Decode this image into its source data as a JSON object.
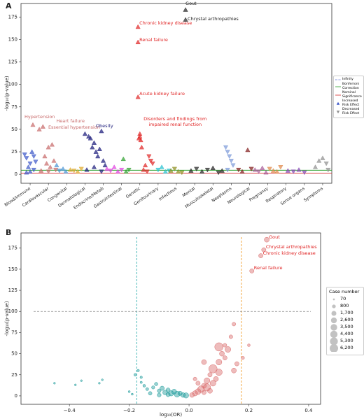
{
  "chart_data": [
    {
      "type": "phewas",
      "panel": "A",
      "y_label": "-log₁₀(p-value)",
      "xlim": [
        0,
        17
      ],
      "ylim": [
        -10,
        190
      ],
      "yticks": [
        0,
        25,
        50,
        75,
        100,
        125,
        150,
        175
      ],
      "categories": [
        "Blood/Immune",
        "Cardiovascular",
        "Congenital",
        "Dermatological",
        "Endocrine/Metab",
        "Gastrointestinal",
        "Genetic",
        "Genitourinary",
        "Infectious",
        "Mental",
        "Musculoskeletal",
        "Neoplasms",
        "Neurological",
        "Pregnancy",
        "Respiratory",
        "Sense organs",
        "Symptoms"
      ],
      "series": [
        {
          "color": "#3a56c8",
          "x": [
            0.2,
            0.3,
            0.4,
            0.5,
            0.6,
            0.7,
            0.8,
            0.5,
            0.3,
            0.7
          ],
          "values": [
            22,
            18,
            8,
            12,
            25,
            5,
            14,
            3,
            2,
            20
          ],
          "markers": [
            "v",
            "v",
            "^",
            "v",
            "^",
            "v",
            "v",
            "^",
            "^",
            "v"
          ]
        },
        {
          "color": "#c86a6a",
          "x": [
            0.65,
            1.0,
            1.2,
            1.5,
            1.7,
            1.3,
            1.4,
            1.6,
            1.8,
            1.1,
            1.5,
            1.9
          ],
          "values": [
            55,
            50,
            53,
            30,
            33,
            20,
            12,
            8,
            15,
            4,
            3,
            5
          ],
          "markers": [
            "^",
            "^",
            "^",
            "^",
            "^",
            "^",
            "^",
            "^",
            "^",
            "^",
            "v",
            "v"
          ]
        },
        {
          "color": "#4a94d4",
          "x": [
            1.95,
            2.1,
            2.3,
            2.45
          ],
          "values": [
            10,
            4,
            6,
            3
          ],
          "markers": [
            "^",
            "v",
            "^",
            "^"
          ]
        },
        {
          "color": "#e0a82a",
          "x": [
            2.7,
            2.9,
            3.1,
            3.3
          ],
          "values": [
            5,
            4,
            3,
            6
          ],
          "markers": [
            "^",
            "v",
            "^",
            "v"
          ]
        },
        {
          "color": "#1a1a7a",
          "x": [
            3.5,
            3.7,
            3.8,
            3.9,
            4.0,
            4.1,
            4.2,
            4.3,
            4.4,
            4.5,
            4.6,
            3.6,
            4.0,
            4.4
          ],
          "values": [
            45,
            42,
            40,
            30,
            35,
            25,
            20,
            28,
            48,
            15,
            10,
            5,
            8,
            3
          ],
          "markers": [
            "^",
            "^",
            "^",
            "^",
            "^",
            "^",
            "^",
            "^",
            "^",
            "^",
            "^",
            "^",
            "^",
            "v"
          ]
        },
        {
          "color": "#e040e0",
          "x": [
            4.7,
            4.9,
            5.1,
            5.3,
            5.5
          ],
          "values": [
            6,
            4,
            8,
            3,
            5
          ],
          "markers": [
            "^",
            "v",
            "^",
            "^",
            "v"
          ]
        },
        {
          "color": "#2ca02c",
          "x": [
            5.6,
            5.75,
            5.9
          ],
          "values": [
            17,
            3,
            5
          ],
          "markers": [
            "^",
            "^",
            "v"
          ]
        },
        {
          "color": "#e02424",
          "x": [
            6.4,
            6.4,
            6.4,
            6.5,
            6.45,
            6.55,
            6.5,
            6.6,
            6.8,
            7.0,
            7.1,
            7.2,
            6.7,
            6.9
          ],
          "values": [
            164,
            147,
            86,
            45,
            40,
            38,
            42,
            30,
            10,
            20,
            15,
            12,
            5,
            3
          ],
          "markers": [
            "^",
            "^",
            "^",
            "^",
            "^",
            "^",
            "^",
            "^",
            "^",
            "v",
            "v",
            "v",
            "^",
            "v"
          ]
        },
        {
          "color": "#22c0d0",
          "x": [
            7.5,
            7.7,
            7.9,
            8.1
          ],
          "values": [
            5,
            8,
            3,
            4
          ],
          "markers": [
            "v",
            "^",
            "^",
            "v"
          ]
        },
        {
          "color": "#8e8e1e",
          "x": [
            8.2,
            8.4,
            8.6,
            8.8
          ],
          "values": [
            4,
            6,
            3,
            2
          ],
          "markers": [
            "^",
            "v",
            "^",
            "v"
          ]
        },
        {
          "color": "#222222",
          "x": [
            9.0,
            9.0,
            9.3,
            9.6,
            9.9,
            10.2,
            10.5,
            10.8,
            11.0
          ],
          "values": [
            183,
            172,
            4,
            6,
            3,
            5,
            7,
            2,
            4
          ],
          "markers": [
            "^",
            "^",
            "^",
            "v",
            "^",
            "v",
            "^",
            "v",
            "^"
          ]
        },
        {
          "color": "#7a98d8",
          "x": [
            11.2,
            11.3,
            11.4,
            11.5,
            11.6,
            11.3
          ],
          "values": [
            30,
            25,
            20,
            15,
            10,
            5
          ],
          "markers": [
            "v",
            "v",
            "v",
            "v",
            "v",
            "v"
          ]
        },
        {
          "color": "#801818",
          "x": [
            11.9,
            12.1,
            12.4,
            12.6
          ],
          "values": [
            5,
            3,
            27,
            6
          ],
          "markers": [
            "v",
            "^",
            "^",
            "v"
          ]
        },
        {
          "color": "#a85c98",
          "x": [
            12.8,
            13.0,
            13.2,
            13.4
          ],
          "values": [
            5,
            3,
            7,
            2
          ],
          "markers": [
            "^",
            "v",
            "^",
            "^"
          ]
        },
        {
          "color": "#e08848",
          "x": [
            13.6,
            13.8,
            14.0,
            14.2
          ],
          "values": [
            6,
            4,
            3,
            8
          ],
          "markers": [
            "v",
            "^",
            "^",
            "v"
          ]
        },
        {
          "color": "#8444b4",
          "x": [
            14.6,
            14.9,
            15.2,
            15.5
          ],
          "values": [
            4,
            3,
            5,
            2
          ],
          "markers": [
            "^",
            "v",
            "^",
            "v"
          ]
        },
        {
          "color": "#8e8e8e",
          "x": [
            16.1,
            16.3,
            16.5,
            16.7,
            16.8
          ],
          "values": [
            8,
            15,
            18,
            12,
            5
          ],
          "markers": [
            "^",
            "^",
            "^",
            "v",
            "v"
          ]
        }
      ],
      "hlines": [
        {
          "value": 4.5,
          "color": "#2ca02c"
        },
        {
          "value": 1.3,
          "color": "#d62728"
        }
      ],
      "legend": [
        {
          "label": "Infinity",
          "color": "#4a5fd0",
          "style": "dashdot"
        },
        {
          "label": "Bonferroni Correction",
          "color": "#2ca02c",
          "style": "solid"
        },
        {
          "label": "Nominal Significance",
          "color": "#d62728",
          "style": "solid"
        },
        {
          "label": "Increased Risk Effect",
          "color": "#3a56c8",
          "marker": "^"
        },
        {
          "label": "Decreased Risk Effect",
          "color": "#8e8e8e",
          "marker": "v"
        }
      ],
      "annotations": [
        {
          "text": "Gout",
          "x": 9.0,
          "y": 183,
          "color": "#222222"
        },
        {
          "text": "Chrystal arthropathies",
          "x": 9.0,
          "y": 172,
          "color": "#222222"
        },
        {
          "text": "Chronic kidney disease",
          "x": 6.4,
          "y": 164,
          "color": "#e02424"
        },
        {
          "text": "Renal failure",
          "x": 6.4,
          "y": 147,
          "color": "#e02424"
        },
        {
          "text": "Acute kidney failure",
          "x": 6.4,
          "y": 86,
          "color": "#e02424"
        },
        {
          "text": "Disorders and findings from impaired renal function",
          "x": 6.5,
          "y": 45,
          "color": "#e02424"
        },
        {
          "text": "Hypertension",
          "x": 0.65,
          "y": 55,
          "color": "#c86a6a"
        },
        {
          "text": "Heart failure",
          "x": 1.2,
          "y": 53,
          "color": "#c86a6a"
        },
        {
          "text": "Essential hypertension",
          "x": 1.3,
          "y": 52,
          "color": "#c86a6a"
        },
        {
          "text": "Obesity",
          "x": 4.4,
          "y": 48,
          "color": "#1a1a7a"
        }
      ]
    },
    {
      "type": "volcano",
      "panel": "B",
      "x_label": "log₁₀(OR)",
      "y_label": "-log₁₀(p-value)",
      "xlim": [
        -0.562,
        0.44
      ],
      "ylim": [
        -10,
        193
      ],
      "xticks": [
        {
          "value": -0.4,
          "label": "−0.4"
        },
        {
          "value": -0.2,
          "label": "−0.2"
        },
        {
          "value": 0.0,
          "label": "0.0"
        },
        {
          "value": 0.2,
          "label": "0.2"
        },
        {
          "value": 0.4,
          "label": "0.4"
        }
      ],
      "yticks": [
        0,
        25,
        50,
        75,
        100,
        125,
        150,
        175
      ],
      "vlines": [
        {
          "value": -0.175,
          "color": "#3ab0b0"
        },
        {
          "value": 0.175,
          "color": "#f0a030"
        }
      ],
      "hlines": [
        {
          "value": 100,
          "color": "#888888"
        }
      ],
      "series": [
        {
          "color": "#1a9a9a",
          "x": [
            -0.45,
            -0.38,
            -0.36,
            -0.3,
            -0.29,
            -0.18,
            -0.17,
            -0.16,
            -0.15,
            -0.14,
            -0.12,
            -0.11,
            -0.1,
            -0.09,
            -0.08,
            -0.07,
            -0.06,
            -0.05,
            -0.04,
            -0.03,
            -0.02,
            -0.01,
            -0.13,
            -0.1,
            -0.07,
            -0.2,
            -0.19,
            -0.16
          ],
          "values": [
            15,
            13,
            18,
            15,
            19,
            25,
            30,
            22,
            12,
            8,
            10,
            14,
            6,
            9,
            4,
            7,
            3,
            5,
            2,
            3,
            1,
            0.5,
            3,
            1,
            1.5,
            5,
            2,
            16
          ],
          "sizes": [
            70,
            70,
            70,
            70,
            70,
            300,
            200,
            200,
            300,
            400,
            500,
            600,
            800,
            1200,
            1500,
            1000,
            2000,
            1700,
            2600,
            1200,
            1500,
            2000,
            700,
            900,
            1100,
            100,
            100,
            150
          ]
        },
        {
          "color": "#d96b6b",
          "x": [
            0.01,
            0.02,
            0.03,
            0.04,
            0.05,
            0.05,
            0.06,
            0.06,
            0.07,
            0.07,
            0.08,
            0.08,
            0.09,
            0.1,
            0.1,
            0.11,
            0.12,
            0.12,
            0.13,
            0.14,
            0.15,
            0.15,
            0.16,
            0.1,
            0.05,
            0.18,
            0.2,
            0.21,
            0.24,
            0.25,
            0.26,
            0.02,
            0.03
          ],
          "values": [
            1,
            3,
            5,
            8,
            12,
            4,
            18,
            10,
            25,
            6,
            32,
            15,
            20,
            28,
            40,
            50,
            45,
            60,
            55,
            70,
            85,
            30,
            38,
            58,
            40,
            45,
            60,
            148,
            166,
            173,
            185,
            20,
            15
          ],
          "sizes": [
            1500,
            2000,
            2600,
            3500,
            1700,
            1200,
            2600,
            4400,
            1200,
            1700,
            6200,
            2600,
            1700,
            3500,
            2600,
            1700,
            1200,
            800,
            2600,
            800,
            800,
            1700,
            1200,
            6200,
            1700,
            500,
            300,
            1200,
            1200,
            1200,
            1700,
            800,
            1200
          ]
        }
      ],
      "size_legend": {
        "title": "Case number",
        "values": [
          70,
          800,
          {
            "value": 1700,
            "label": "1,700"
          },
          {
            "value": 2600,
            "label": "2,600"
          },
          {
            "value": 3500,
            "label": "3,500"
          },
          {
            "value": 4400,
            "label": "4,400"
          },
          {
            "value": 5300,
            "label": "5,300"
          },
          {
            "value": 6200,
            "label": "6,200"
          }
        ]
      },
      "annotations": [
        {
          "text": "Gout",
          "x": 0.26,
          "y": 185,
          "color": "#e02424"
        },
        {
          "text": "Chrystal arthropathies",
          "x": 0.25,
          "y": 173,
          "color": "#e02424"
        },
        {
          "text": "Chronic kidney disease",
          "x": 0.24,
          "y": 166,
          "color": "#e02424"
        },
        {
          "text": "Renal failure",
          "x": 0.21,
          "y": 148,
          "color": "#e02424"
        }
      ]
    }
  ]
}
